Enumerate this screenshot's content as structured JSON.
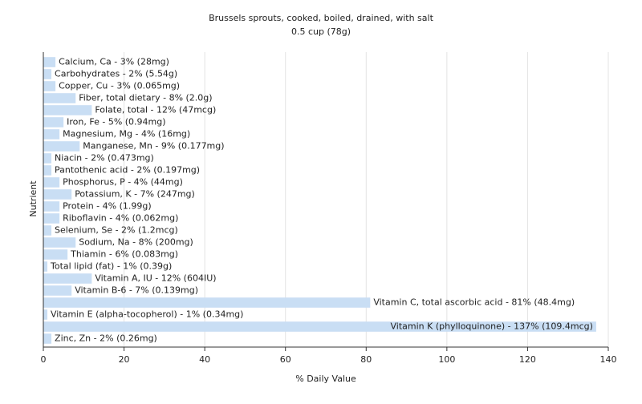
{
  "chart_data": {
    "type": "bar",
    "orientation": "horizontal",
    "title": "Brussels sprouts, cooked, boiled, drained, with salt",
    "subtitle": "0.5 cup (78g)",
    "x_label": "% Daily Value",
    "y_label": "Nutrient",
    "categories": [
      "Calcium, Ca - 3% (28mg)",
      "Carbohydrates - 2% (5.54g)",
      "Copper, Cu - 3% (0.065mg)",
      "Fiber, total dietary - 8% (2.0g)",
      "Folate, total - 12% (47mcg)",
      "Iron, Fe - 5% (0.94mg)",
      "Magnesium, Mg - 4% (16mg)",
      "Manganese, Mn - 9% (0.177mg)",
      "Niacin - 2% (0.473mg)",
      "Pantothenic acid - 2% (0.197mg)",
      "Phosphorus, P - 4% (44mg)",
      "Potassium, K - 7% (247mg)",
      "Protein - 4% (1.99g)",
      "Riboflavin - 4% (0.062mg)",
      "Selenium, Se - 2% (1.2mcg)",
      "Sodium, Na - 8% (200mg)",
      "Thiamin - 6% (0.083mg)",
      "Total lipid (fat) - 1% (0.39g)",
      "Vitamin A, IU - 12% (604IU)",
      "Vitamin B-6 - 7% (0.139mg)",
      "Vitamin C, total ascorbic acid - 81% (48.4mg)",
      "Vitamin E (alpha-tocopherol) - 1% (0.34mg)",
      "Vitamin K (phylloquinone) - 137% (109.4mcg)",
      "Zinc, Zn - 2% (0.26mg)"
    ],
    "values": [
      3,
      2,
      3,
      8,
      12,
      5,
      4,
      9,
      2,
      2,
      4,
      7,
      4,
      4,
      2,
      8,
      6,
      1,
      12,
      7,
      81,
      1,
      137,
      2
    ],
    "color": "#c9def4",
    "xlim": [
      0,
      140
    ],
    "xticks": [
      0,
      20,
      40,
      60,
      80,
      100,
      120,
      140
    ],
    "grid": true
  }
}
